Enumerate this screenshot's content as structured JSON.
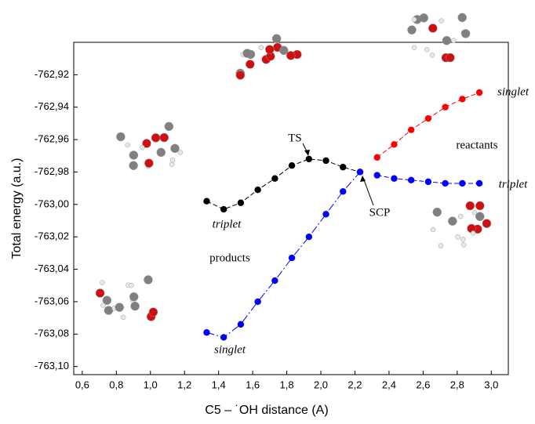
{
  "chart_data": {
    "type": "line",
    "xlabel": "C5 – ˙OH distance (A)",
    "ylabel": "Total energy (a.u.)",
    "xlim": [
      0.55,
      3.1
    ],
    "ylim": [
      -763.105,
      -762.9
    ],
    "xticks": [
      {
        "value": 0.6,
        "label": "0,6"
      },
      {
        "value": 0.8,
        "label": "0,8"
      },
      {
        "value": 1.0,
        "label": "1,0"
      },
      {
        "value": 1.2,
        "label": "1,2"
      },
      {
        "value": 1.4,
        "label": "1,4"
      },
      {
        "value": 1.6,
        "label": "1,6"
      },
      {
        "value": 1.8,
        "label": "1,8"
      },
      {
        "value": 2.0,
        "label": "2,0"
      },
      {
        "value": 2.2,
        "label": "2,2"
      },
      {
        "value": 2.4,
        "label": "2,4"
      },
      {
        "value": 2.6,
        "label": "2,6"
      },
      {
        "value": 2.8,
        "label": "2,8"
      },
      {
        "value": 3.0,
        "label": "3,0"
      }
    ],
    "yticks": [
      {
        "value": -762.92,
        "label": "-762,92"
      },
      {
        "value": -762.94,
        "label": "-762,94"
      },
      {
        "value": -762.96,
        "label": "-762,96"
      },
      {
        "value": -762.98,
        "label": "-762,98"
      },
      {
        "value": -763.0,
        "label": "-763,00"
      },
      {
        "value": -763.02,
        "label": "-763,02"
      },
      {
        "value": -763.04,
        "label": "-763,04"
      },
      {
        "value": -763.06,
        "label": "-763,06"
      },
      {
        "value": -763.08,
        "label": "-763,08"
      },
      {
        "value": -763.1,
        "label": "-763,10"
      }
    ],
    "series": [
      {
        "color": "#000000",
        "x": [
          1.33,
          1.43,
          1.53,
          1.63,
          1.73,
          1.83,
          1.93,
          2.03,
          2.13,
          2.23
        ],
        "values": [
          -762.998,
          -763.003,
          -762.999,
          -762.991,
          -762.984,
          -762.976,
          -762.972,
          -762.973,
          -762.977,
          -762.98
        ]
      },
      {
        "color": "#ff0000",
        "x": [
          2.33,
          2.43,
          2.53,
          2.63,
          2.73,
          2.83,
          2.93
        ],
        "values": [
          -762.971,
          -762.963,
          -762.954,
          -762.947,
          -762.94,
          -762.935,
          -762.931
        ]
      },
      {
        "color": "#0000ff",
        "x": [
          2.33,
          2.43,
          2.53,
          2.63,
          2.73,
          2.83,
          2.93
        ],
        "values": [
          -762.982,
          -762.984,
          -762.985,
          -762.986,
          -762.987,
          -762.987,
          -762.987
        ]
      },
      {
        "color": "#0000ff",
        "x": [
          1.33,
          1.43,
          1.53,
          1.63,
          1.73,
          1.83,
          1.93,
          2.03,
          2.13,
          2.23
        ],
        "values": [
          -763.079,
          -763.082,
          -763.074,
          -763.06,
          -763.047,
          -763.033,
          -763.02,
          -763.006,
          -762.992,
          -762.98
        ]
      }
    ],
    "annotations": [
      "TS",
      "SCP",
      "reactants",
      "products",
      "triplet",
      "singlet",
      "singlet",
      "triplet"
    ]
  }
}
